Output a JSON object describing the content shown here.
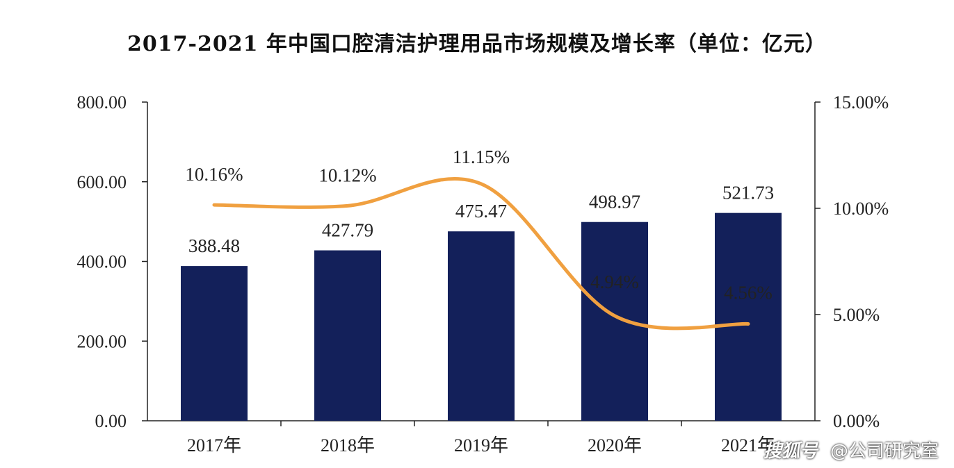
{
  "chart_data": {
    "type": "bar",
    "title": "2017-2021 年中国口腔清洁护理用品市场规模及增长率（单位：亿元）",
    "categories": [
      "2017年",
      "2018年",
      "2019年",
      "2020年",
      "2021年"
    ],
    "series": [
      {
        "values": [
          388.48,
          427.79,
          475.47,
          498.97,
          521.73
        ],
        "value_labels": [
          "388.48",
          "427.79",
          "475.47",
          "498.97",
          "521.73"
        ],
        "color": "#13205a",
        "axis": "left",
        "type": "bar"
      },
      {
        "values": [
          10.16,
          10.12,
          11.15,
          4.94,
          4.56
        ],
        "value_labels": [
          "10.16%",
          "10.12%",
          "11.15%",
          "4.94%",
          "4.56%"
        ],
        "color": "#f0a040",
        "axis": "right",
        "type": "line",
        "smooth": true
      }
    ],
    "y_left": {
      "lim": [
        0,
        800
      ],
      "ticks": [
        "0.00",
        "200.00",
        "400.00",
        "600.00",
        "800.00"
      ]
    },
    "y_right": {
      "lim": [
        0,
        15
      ],
      "ticks": [
        "0.00%",
        "5.00%",
        "10.00%",
        "15.00%"
      ]
    },
    "grid": false,
    "legend": "none"
  },
  "watermark": {
    "logo_text": "搜狐号",
    "handle": "@公司研究室"
  }
}
